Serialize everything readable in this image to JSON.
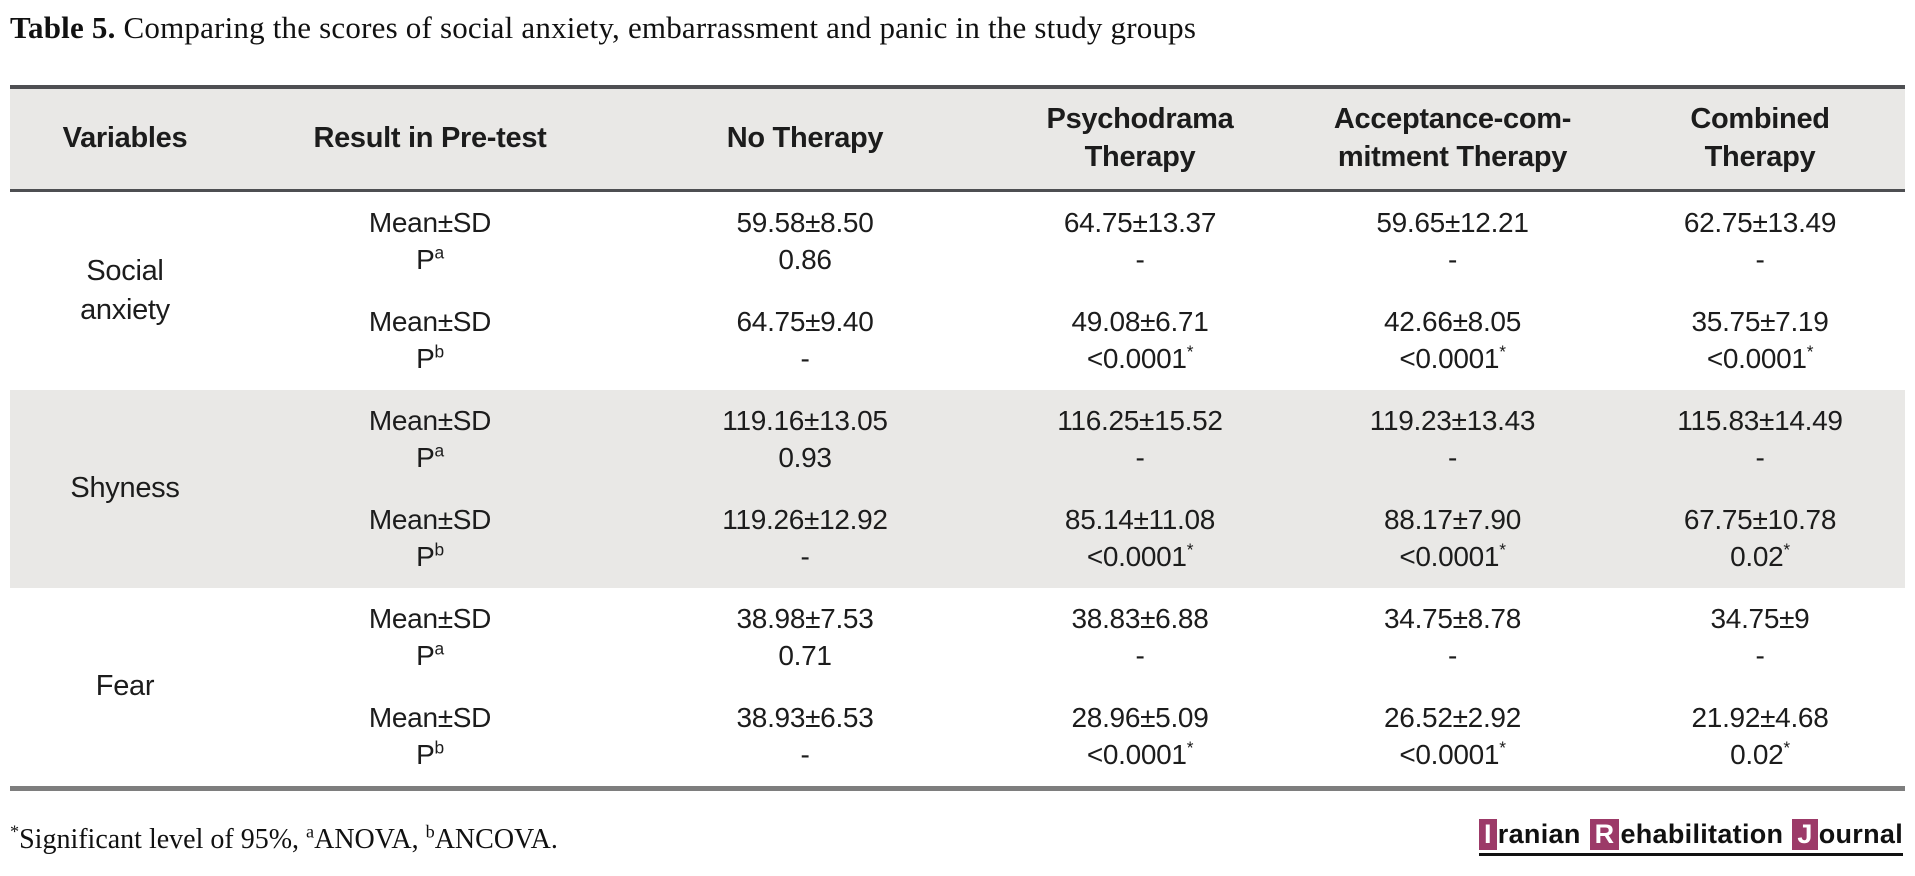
{
  "colors": {
    "band_gray": "#e9e8e6",
    "rule_dark": "#4e4f52",
    "rule_bottom_gray": "#7e7e7e",
    "logo_magenta": "#9c3a68",
    "text": "#1c1c1c"
  },
  "title": {
    "label": "Table 5.",
    "text": "Comparing the scores of social anxiety, embarrassment and panic in the study groups"
  },
  "header": {
    "variables": "Variables",
    "pretest": "Result in Pre-test",
    "no_therapy": "No Therapy",
    "psychodrama": "Psychodrama\nTherapy",
    "acceptance": "Acceptance-com-\nmitment Therapy",
    "combined": "Combined\nTherapy"
  },
  "groups": [
    {
      "variable": "Social\nanxiety",
      "rows": [
        {
          "measure": "Mean±SD",
          "p_base": "P",
          "p_sup": "a",
          "values": [
            "59.58±8.50",
            "64.75±13.37",
            "59.65±12.21",
            "62.75±13.49"
          ],
          "p": [
            "0.86",
            "-",
            "-",
            "-"
          ],
          "stars": [
            "",
            "",
            "",
            ""
          ]
        },
        {
          "measure": "Mean±SD",
          "p_base": "P",
          "p_sup": "b",
          "values": [
            "64.75±9.40",
            "49.08±6.71",
            "42.66±8.05",
            "35.75±7.19"
          ],
          "p": [
            "-",
            "<0.0001",
            "<0.0001",
            "<0.0001"
          ],
          "stars": [
            "",
            "*",
            "*",
            "*"
          ]
        }
      ]
    },
    {
      "variable": "Shyness",
      "rows": [
        {
          "measure": "Mean±SD",
          "p_base": "P",
          "p_sup": "a",
          "values": [
            "119.16±13.05",
            "116.25±15.52",
            "119.23±13.43",
            "115.83±14.49"
          ],
          "p": [
            "0.93",
            "-",
            "-",
            "-"
          ],
          "stars": [
            "",
            "",
            "",
            ""
          ]
        },
        {
          "measure": "Mean±SD",
          "p_base": "P",
          "p_sup": "b",
          "values": [
            "119.26±12.92",
            "85.14±11.08",
            "88.17±7.90",
            "67.75±10.78"
          ],
          "p": [
            "-",
            "<0.0001",
            "<0.0001",
            "0.02"
          ],
          "stars": [
            "",
            "*",
            "*",
            "*"
          ]
        }
      ]
    },
    {
      "variable": "Fear",
      "rows": [
        {
          "measure": "Mean±SD",
          "p_base": "P",
          "p_sup": "a",
          "values": [
            "38.98±7.53",
            "38.83±6.88",
            "34.75±8.78",
            "34.75±9"
          ],
          "p": [
            "0.71",
            "-",
            "-",
            "-"
          ],
          "stars": [
            "",
            "",
            "",
            ""
          ]
        },
        {
          "measure": "Mean±SD",
          "p_base": "P",
          "p_sup": "b",
          "values": [
            "38.93±6.53",
            "28.96±5.09",
            "26.52±2.92",
            "21.92±4.68"
          ],
          "p": [
            "-",
            "<0.0001",
            "<0.0001",
            "0.02"
          ],
          "stars": [
            "",
            "*",
            "*",
            "*"
          ]
        }
      ]
    }
  ],
  "footnote": {
    "star": "*",
    "text1": "Significant level of 95%, ",
    "sup_a": "a",
    "text2": "ANOVA, ",
    "sup_b": "b",
    "text3": "ANCOVA."
  },
  "logo": {
    "words": [
      {
        "initial": "I",
        "rest": "ranian"
      },
      {
        "initial": "R",
        "rest": "ehabilitation"
      },
      {
        "initial": "J",
        "rest": "ournal"
      }
    ]
  }
}
